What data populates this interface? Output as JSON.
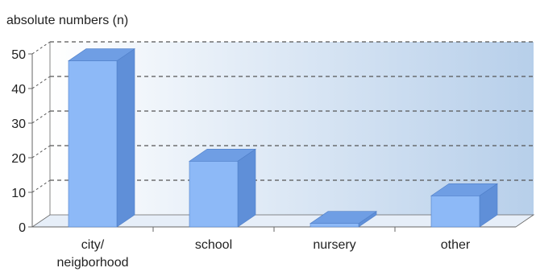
{
  "chart_data": {
    "type": "bar",
    "title": "",
    "ylabel": "absolute numbers (n)",
    "xlabel": "",
    "categories": [
      "city/\nneigborhood",
      "school",
      "nursery",
      "other"
    ],
    "values": [
      48,
      19,
      1,
      9
    ],
    "ylim": [
      0,
      50
    ],
    "yticks": [
      0,
      10,
      20,
      30,
      40,
      50
    ],
    "grid": true,
    "legend": "none",
    "three_d": true
  },
  "colors": {
    "bar_front": "#8db9f7",
    "bar_top": "#6f9ee4",
    "bar_side": "#5f8fd8",
    "bar_stroke": "#4f7fc8",
    "back_wall_light": "#ffffff",
    "back_wall_dark": "#b7cfea",
    "grid": "#555555",
    "axis": "#666666"
  }
}
